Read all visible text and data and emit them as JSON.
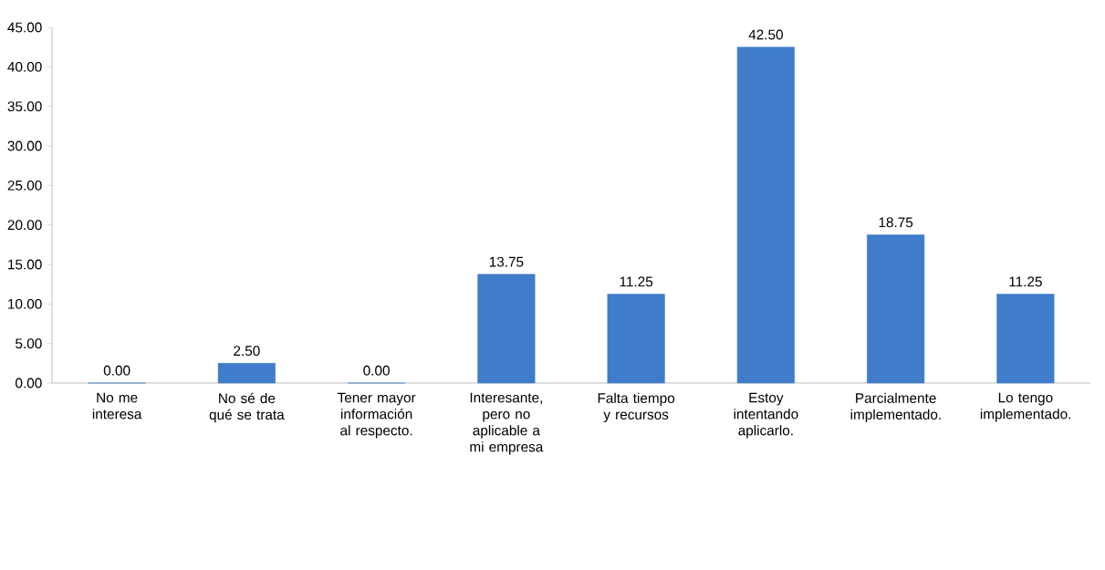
{
  "chart_data": {
    "type": "bar",
    "categories": [
      "No me interesa",
      "No sé de qué se trata",
      "Tener mayor información al respecto.",
      "Interesante, pero no aplicable a mi empresa",
      "Falta tiempo y recursos",
      "Estoy intentando aplicarlo.",
      "Parcialmente implementado.",
      "Lo tengo implementado."
    ],
    "values": [
      0,
      2.5,
      0,
      13.75,
      11.25,
      42.5,
      18.75,
      11.25
    ],
    "value_labels": [
      "0.00",
      "2.50",
      "0.00",
      "13.75",
      "11.25",
      "42.50",
      "18.75",
      "11.25"
    ],
    "color": "#3f7cc9",
    "ylim": [
      0,
      45
    ],
    "yticks": [
      {
        "value": 0,
        "label": "0.00"
      },
      {
        "value": 5,
        "label": "5.00"
      },
      {
        "value": 10,
        "label": "10.00"
      },
      {
        "value": 15,
        "label": "15.00"
      },
      {
        "value": 20,
        "label": "20.00"
      },
      {
        "value": 25,
        "label": "25.00"
      },
      {
        "value": 30,
        "label": "30.00"
      },
      {
        "value": 35,
        "label": "35.00"
      },
      {
        "value": 40,
        "label": "40.00"
      },
      {
        "value": 45,
        "label": "45.00"
      }
    ],
    "grid": false
  }
}
